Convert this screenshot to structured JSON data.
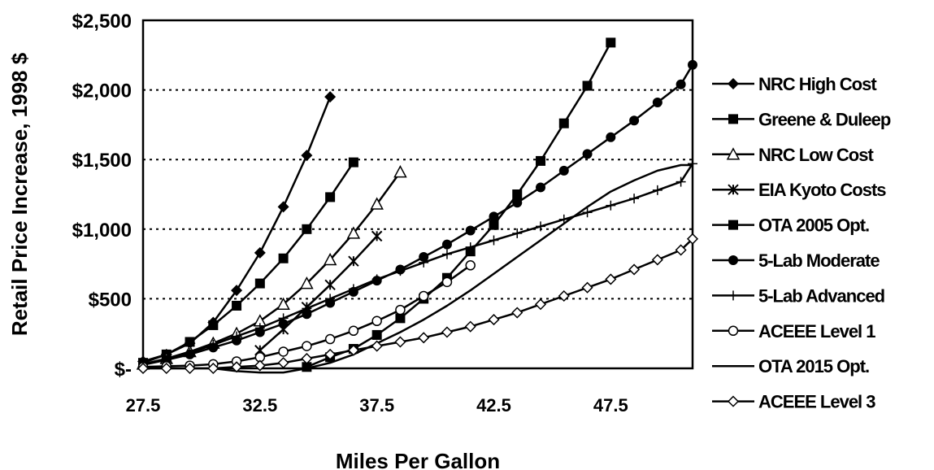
{
  "chart_data": {
    "type": "line",
    "title": "",
    "xlabel": "Miles Per Gallon",
    "ylabel": "Retail Price Increase, 1998 $",
    "xlim": [
      27.5,
      51.0
    ],
    "ylim": [
      0,
      2500
    ],
    "x_ticks": [
      27.5,
      32.5,
      37.5,
      42.5,
      47.5
    ],
    "x_tick_labels": [
      "27.5",
      "32.5",
      "37.5",
      "42.5",
      "47.5"
    ],
    "y_ticks": [
      0,
      500,
      1000,
      1500,
      2000,
      2500
    ],
    "y_tick_labels": [
      "$-",
      "$500",
      "$1,000",
      "$1,500",
      "$2,000",
      "$2,500"
    ],
    "grid": "horizontal dotted",
    "legend_position": "right",
    "series": [
      {
        "name": "NRC High Cost",
        "marker": "diamond-filled",
        "points": [
          [
            27.5,
            50
          ],
          [
            28.5,
            100
          ],
          [
            29.5,
            180
          ],
          [
            30.5,
            330
          ],
          [
            31.5,
            560
          ],
          [
            32.5,
            830
          ],
          [
            33.5,
            1160
          ],
          [
            34.5,
            1530
          ],
          [
            35.5,
            1950
          ]
        ]
      },
      {
        "name": "Greene & Duleep",
        "marker": "square-filled",
        "points": [
          [
            27.5,
            40
          ],
          [
            28.5,
            100
          ],
          [
            29.5,
            190
          ],
          [
            30.5,
            310
          ],
          [
            31.5,
            450
          ],
          [
            32.5,
            610
          ],
          [
            33.5,
            790
          ],
          [
            34.5,
            1000
          ],
          [
            35.5,
            1230
          ],
          [
            36.5,
            1480
          ]
        ]
      },
      {
        "name": "NRC Low Cost",
        "marker": "triangle",
        "points": [
          [
            27.5,
            30
          ],
          [
            28.5,
            70
          ],
          [
            29.5,
            120
          ],
          [
            30.5,
            180
          ],
          [
            31.5,
            250
          ],
          [
            32.5,
            340
          ],
          [
            33.5,
            460
          ],
          [
            34.5,
            610
          ],
          [
            35.5,
            780
          ],
          [
            36.5,
            970
          ],
          [
            37.5,
            1180
          ],
          [
            38.5,
            1410
          ]
        ]
      },
      {
        "name": "EIA Kyoto Costs",
        "marker": "asterisk",
        "points": [
          [
            32.5,
            130
          ],
          [
            33.5,
            280
          ],
          [
            34.5,
            440
          ],
          [
            35.5,
            600
          ],
          [
            36.5,
            770
          ],
          [
            37.5,
            950
          ]
        ]
      },
      {
        "name": "OTA 2005 Opt.",
        "marker": "square-filled",
        "points": [
          [
            34.5,
            10
          ],
          [
            35.5,
            80
          ],
          [
            36.5,
            140
          ],
          [
            37.5,
            240
          ],
          [
            38.5,
            360
          ],
          [
            39.5,
            500
          ],
          [
            40.5,
            650
          ],
          [
            41.5,
            840
          ],
          [
            42.5,
            1030
          ],
          [
            43.5,
            1250
          ],
          [
            44.5,
            1490
          ],
          [
            45.5,
            1760
          ],
          [
            46.5,
            2030
          ],
          [
            47.5,
            2340
          ]
        ]
      },
      {
        "name": "5-Lab Moderate",
        "marker": "circle-filled",
        "points": [
          [
            27.5,
            30
          ],
          [
            28.5,
            60
          ],
          [
            29.5,
            100
          ],
          [
            30.5,
            150
          ],
          [
            31.5,
            200
          ],
          [
            32.5,
            260
          ],
          [
            33.5,
            320
          ],
          [
            34.5,
            390
          ],
          [
            35.5,
            470
          ],
          [
            36.5,
            550
          ],
          [
            37.5,
            630
          ],
          [
            38.5,
            710
          ],
          [
            39.5,
            800
          ],
          [
            40.5,
            890
          ],
          [
            41.5,
            990
          ],
          [
            42.5,
            1090
          ],
          [
            43.5,
            1190
          ],
          [
            44.5,
            1300
          ],
          [
            45.5,
            1420
          ],
          [
            46.5,
            1540
          ],
          [
            47.5,
            1660
          ],
          [
            48.5,
            1780
          ],
          [
            49.5,
            1910
          ],
          [
            50.5,
            2040
          ],
          [
            51.0,
            2180
          ]
        ]
      },
      {
        "name": "5-Lab Advanced",
        "marker": "plus",
        "points": [
          [
            27.5,
            25
          ],
          [
            28.5,
            60
          ],
          [
            29.5,
            110
          ],
          [
            30.5,
            170
          ],
          [
            31.5,
            230
          ],
          [
            32.5,
            290
          ],
          [
            33.5,
            360
          ],
          [
            34.5,
            430
          ],
          [
            35.5,
            500
          ],
          [
            36.5,
            570
          ],
          [
            37.5,
            640
          ],
          [
            38.5,
            700
          ],
          [
            39.5,
            760
          ],
          [
            40.5,
            820
          ],
          [
            41.5,
            870
          ],
          [
            42.5,
            920
          ],
          [
            43.5,
            970
          ],
          [
            44.5,
            1020
          ],
          [
            45.5,
            1070
          ],
          [
            46.5,
            1120
          ],
          [
            47.5,
            1170
          ],
          [
            48.5,
            1220
          ],
          [
            49.5,
            1280
          ],
          [
            50.5,
            1340
          ],
          [
            51.0,
            1470
          ]
        ]
      },
      {
        "name": "ACEEE Level 1",
        "marker": "circle-open",
        "points": [
          [
            27.5,
            10
          ],
          [
            28.5,
            15
          ],
          [
            29.5,
            20
          ],
          [
            30.5,
            30
          ],
          [
            31.5,
            50
          ],
          [
            32.5,
            80
          ],
          [
            33.5,
            120
          ],
          [
            34.5,
            160
          ],
          [
            35.5,
            210
          ],
          [
            36.5,
            270
          ],
          [
            37.5,
            340
          ],
          [
            38.5,
            420
          ],
          [
            39.5,
            520
          ],
          [
            40.5,
            620
          ],
          [
            41.5,
            740
          ]
        ]
      },
      {
        "name": "OTA 2015 Opt.",
        "marker": "none",
        "points": [
          [
            30.5,
            0
          ],
          [
            31.5,
            -20
          ],
          [
            32.5,
            -30
          ],
          [
            33.5,
            -30
          ],
          [
            34.5,
            0
          ],
          [
            35.5,
            40
          ],
          [
            36.5,
            100
          ],
          [
            37.5,
            180
          ],
          [
            38.5,
            260
          ],
          [
            39.5,
            350
          ],
          [
            40.5,
            450
          ],
          [
            41.5,
            560
          ],
          [
            42.5,
            680
          ],
          [
            43.5,
            800
          ],
          [
            44.5,
            920
          ],
          [
            45.5,
            1040
          ],
          [
            46.5,
            1160
          ],
          [
            47.5,
            1270
          ],
          [
            48.5,
            1350
          ],
          [
            49.5,
            1420
          ],
          [
            50.5,
            1460
          ],
          [
            51.0,
            1460
          ]
        ]
      },
      {
        "name": "ACEEE Level 3",
        "marker": "diamond-open",
        "points": [
          [
            27.5,
            0
          ],
          [
            28.5,
            0
          ],
          [
            29.5,
            0
          ],
          [
            30.5,
            0
          ],
          [
            31.5,
            10
          ],
          [
            32.5,
            20
          ],
          [
            33.5,
            40
          ],
          [
            34.5,
            70
          ],
          [
            35.5,
            100
          ],
          [
            36.5,
            130
          ],
          [
            37.5,
            160
          ],
          [
            38.5,
            190
          ],
          [
            39.5,
            220
          ],
          [
            40.5,
            260
          ],
          [
            41.5,
            300
          ],
          [
            42.5,
            350
          ],
          [
            43.5,
            400
          ],
          [
            44.5,
            460
          ],
          [
            45.5,
            520
          ],
          [
            46.5,
            580
          ],
          [
            47.5,
            640
          ],
          [
            48.5,
            710
          ],
          [
            49.5,
            780
          ],
          [
            50.5,
            850
          ],
          [
            51.0,
            930
          ]
        ]
      }
    ]
  }
}
